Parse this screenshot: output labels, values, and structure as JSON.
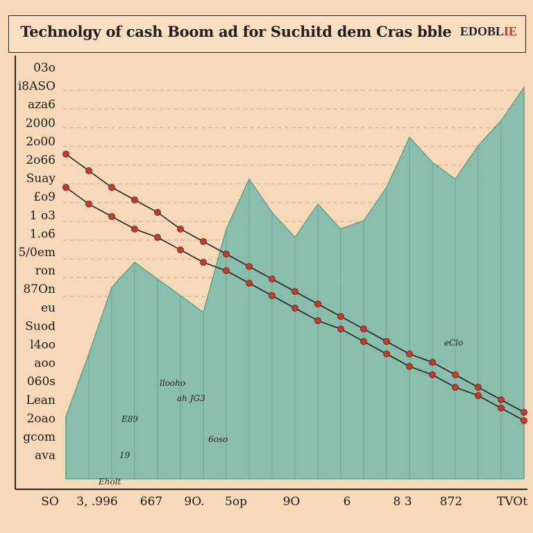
{
  "header": {
    "title": "Technolgy of cash Boom  ad for Suchitd dem Cras bble",
    "badge_main": "EDOBL",
    "badge_accent": "IE"
  },
  "colors": {
    "background": "#f6d9b8",
    "area": "#7fbcaa",
    "area_edge": "#5c9c8c",
    "dots": "#c5392f",
    "lines": "#2b2622"
  },
  "chart_data": {
    "type": "area",
    "title": "Technolgy of cash Boom  ad for Suchitd dem Cras bble",
    "xlabel": "",
    "ylabel": "",
    "grid": true,
    "y_tick_labels": [
      "03o",
      "i8ASO",
      "aza6",
      "2000",
      "2o00",
      "2o66",
      "Suay",
      "£o9",
      "1 o3",
      "1.o6",
      "5/0em",
      "ron",
      "87On",
      "eu",
      "Suod",
      "l4oo",
      "aoo",
      "060s",
      "Lean",
      "2oao",
      "gcom",
      "ava"
    ],
    "x_tick_labels": [
      "SO",
      "3, .996",
      "667",
      "9O.",
      "5op",
      "9O",
      "6",
      "8 3",
      "872",
      "TVOt"
    ],
    "annotations": [
      "19",
      "E89",
      "Eholt",
      "llooho",
      "ah JG3",
      "6oso",
      "eClo"
    ],
    "x": [
      0,
      1,
      2,
      3,
      4,
      5,
      6,
      7,
      8,
      9,
      10,
      11,
      12,
      13,
      14,
      15,
      16,
      17,
      18,
      19,
      20
    ],
    "series": [
      {
        "values": [
          15,
          30,
          46,
          52,
          48,
          44,
          40,
          60,
          72,
          64,
          58,
          66,
          60,
          62,
          70,
          82,
          76,
          72,
          80,
          86,
          94
        ]
      },
      {
        "values": [
          70,
          66,
          63,
          60,
          58,
          55,
          52,
          50,
          47,
          44,
          41,
          38,
          36,
          33,
          30,
          27,
          25,
          22,
          20,
          17,
          14
        ]
      },
      {
        "values": [
          78,
          74,
          70,
          67,
          64,
          60,
          57,
          54,
          51,
          48,
          45,
          42,
          39,
          36,
          33,
          30,
          28,
          25,
          22,
          19,
          16
        ]
      }
    ]
  }
}
